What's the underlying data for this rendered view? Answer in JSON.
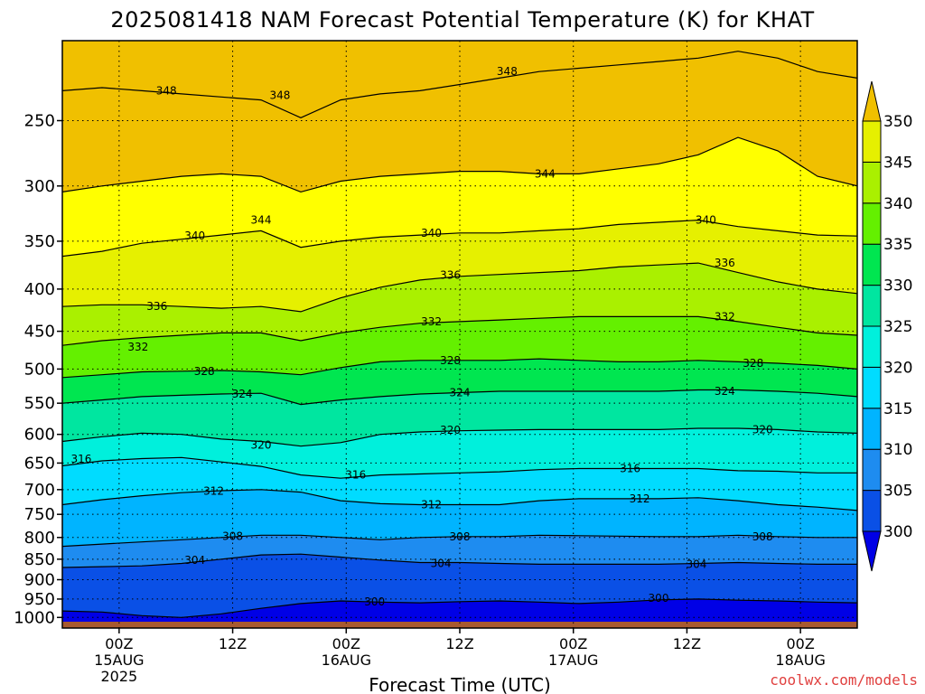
{
  "title": "2025081418 NAM Forecast Potential Temperature (K) for KHAT",
  "credit": "coolwx.com/models",
  "colors": {
    "bands": [
      "#0000e6",
      "#0a50e6",
      "#1e8cf0",
      "#00b4ff",
      "#00dcff",
      "#00f0dc",
      "#00e6a0",
      "#00e650",
      "#64f000",
      "#aaf000",
      "#e6f000",
      "#ffff00",
      "#f0c000"
    ],
    "ground": "#a85a30",
    "contour": "#000000",
    "grid": "#000000",
    "credit": "#e0403f"
  },
  "chart_data": {
    "type": "heatmap",
    "title": "2025081418 NAM Forecast Potential Temperature (K) for KHAT",
    "xlabel": "Forecast Time (UTC)",
    "ylabel": "",
    "y_scale": "log",
    "yrange": [
      1030,
      200
    ],
    "y_ticks": [
      250,
      300,
      350,
      400,
      450,
      500,
      550,
      600,
      650,
      700,
      750,
      800,
      850,
      900,
      950,
      1000
    ],
    "x_hours_range": [
      -6,
      78
    ],
    "x_ticks": [
      {
        "hour": 0,
        "label": "00Z",
        "date": "15AUG",
        "year": "2025"
      },
      {
        "hour": 12,
        "label": "12Z",
        "date": "",
        "year": ""
      },
      {
        "hour": 24,
        "label": "00Z",
        "date": "16AUG",
        "year": ""
      },
      {
        "hour": 36,
        "label": "12Z",
        "date": "",
        "year": ""
      },
      {
        "hour": 48,
        "label": "00Z",
        "date": "17AUG",
        "year": ""
      },
      {
        "hour": 60,
        "label": "12Z",
        "date": "",
        "year": ""
      },
      {
        "hour": 72,
        "label": "00Z",
        "date": "18AUG",
        "year": ""
      }
    ],
    "colorbar": {
      "levels": [
        300,
        305,
        310,
        315,
        320,
        325,
        330,
        335,
        340,
        345,
        350
      ],
      "labels": [
        "300",
        "305",
        "310",
        "315",
        "320",
        "325",
        "330",
        "335",
        "340",
        "345",
        "350"
      ],
      "extend": "both"
    },
    "contour_levels": [
      300,
      304,
      308,
      312,
      316,
      320,
      324,
      328,
      332,
      336,
      340,
      344,
      348
    ],
    "contour_labels": [
      {
        "text": "348",
        "hour": 5,
        "p": 230
      },
      {
        "text": "348",
        "hour": 17,
        "p": 233
      },
      {
        "text": "348",
        "hour": 41,
        "p": 218
      },
      {
        "text": "344",
        "hour": 15,
        "p": 330
      },
      {
        "text": "344",
        "hour": 45,
        "p": 290
      },
      {
        "text": "340",
        "hour": 8,
        "p": 345
      },
      {
        "text": "340",
        "hour": 33,
        "p": 342
      },
      {
        "text": "340",
        "hour": 62,
        "p": 330
      },
      {
        "text": "336",
        "hour": 4,
        "p": 420
      },
      {
        "text": "336",
        "hour": 35,
        "p": 385
      },
      {
        "text": "336",
        "hour": 64,
        "p": 372
      },
      {
        "text": "332",
        "hour": 2,
        "p": 470
      },
      {
        "text": "332",
        "hour": 33,
        "p": 438
      },
      {
        "text": "332",
        "hour": 64,
        "p": 432
      },
      {
        "text": "328",
        "hour": 9,
        "p": 503
      },
      {
        "text": "328",
        "hour": 35,
        "p": 488
      },
      {
        "text": "328",
        "hour": 67,
        "p": 492
      },
      {
        "text": "324",
        "hour": 13,
        "p": 536
      },
      {
        "text": "324",
        "hour": 36,
        "p": 534
      },
      {
        "text": "324",
        "hour": 64,
        "p": 532
      },
      {
        "text": "320",
        "hour": 15,
        "p": 618
      },
      {
        "text": "320",
        "hour": 35,
        "p": 593
      },
      {
        "text": "320",
        "hour": 68,
        "p": 592
      },
      {
        "text": "316",
        "hour": -4,
        "p": 643
      },
      {
        "text": "316",
        "hour": 25,
        "p": 672
      },
      {
        "text": "316",
        "hour": 54,
        "p": 660
      },
      {
        "text": "312",
        "hour": 10,
        "p": 703
      },
      {
        "text": "312",
        "hour": 33,
        "p": 730
      },
      {
        "text": "312",
        "hour": 55,
        "p": 718
      },
      {
        "text": "308",
        "hour": 12,
        "p": 797
      },
      {
        "text": "308",
        "hour": 36,
        "p": 798
      },
      {
        "text": "308",
        "hour": 68,
        "p": 798
      },
      {
        "text": "304",
        "hour": 8,
        "p": 853
      },
      {
        "text": "304",
        "hour": 34,
        "p": 860
      },
      {
        "text": "304",
        "hour": 61,
        "p": 862
      },
      {
        "text": "300",
        "hour": 27,
        "p": 957
      },
      {
        "text": "300",
        "hour": 57,
        "p": 948
      }
    ],
    "contour_pressures": {
      "300": [
        982,
        985,
        995,
        1000,
        990,
        975,
        962,
        955,
        958,
        960,
        957,
        955,
        958,
        962,
        958,
        952,
        950,
        953,
        955,
        958,
        960
      ],
      "304": [
        870,
        868,
        866,
        860,
        850,
        840,
        838,
        845,
        852,
        858,
        858,
        860,
        862,
        862,
        862,
        862,
        860,
        858,
        860,
        862,
        862
      ],
      "308": [
        820,
        815,
        810,
        805,
        800,
        795,
        795,
        800,
        805,
        800,
        798,
        798,
        795,
        796,
        797,
        798,
        798,
        795,
        798,
        800,
        800
      ],
      "312": [
        730,
        720,
        712,
        706,
        702,
        700,
        705,
        722,
        728,
        730,
        730,
        730,
        722,
        718,
        718,
        718,
        716,
        722,
        730,
        735,
        742
      ],
      "316": [
        655,
        646,
        642,
        640,
        648,
        656,
        672,
        678,
        672,
        670,
        668,
        666,
        662,
        660,
        660,
        660,
        660,
        664,
        665,
        668,
        668
      ],
      "320": [
        612,
        604,
        598,
        600,
        608,
        612,
        620,
        614,
        600,
        596,
        594,
        593,
        592,
        592,
        592,
        592,
        590,
        590,
        592,
        596,
        598
      ],
      "324": [
        550,
        545,
        540,
        538,
        536,
        535,
        552,
        545,
        540,
        536,
        534,
        532,
        532,
        532,
        532,
        532,
        530,
        530,
        532,
        535,
        540
      ],
      "328": [
        512,
        508,
        504,
        503,
        502,
        504,
        508,
        498,
        490,
        488,
        488,
        488,
        486,
        488,
        490,
        490,
        488,
        490,
        492,
        495,
        500
      ],
      "332": [
        468,
        462,
        458,
        455,
        452,
        452,
        462,
        452,
        445,
        440,
        438,
        436,
        434,
        432,
        432,
        432,
        432,
        438,
        445,
        452,
        455
      ],
      "336": [
        420,
        418,
        418,
        420,
        422,
        420,
        426,
        410,
        398,
        390,
        386,
        384,
        382,
        380,
        376,
        374,
        372,
        382,
        392,
        400,
        405
      ],
      "340": [
        365,
        360,
        352,
        348,
        344,
        340,
        356,
        350,
        346,
        344,
        342,
        342,
        340,
        338,
        334,
        332,
        330,
        336,
        340,
        344,
        345
      ],
      "344": [
        305,
        300,
        296,
        292,
        290,
        292,
        305,
        296,
        292,
        290,
        288,
        288,
        290,
        290,
        286,
        282,
        275,
        262,
        272,
        292,
        300
      ],
      "348": [
        230,
        228,
        230,
        232,
        234,
        236,
        248,
        236,
        232,
        230,
        226,
        222,
        218,
        216,
        214,
        212,
        210,
        206,
        210,
        218,
        222
      ]
    },
    "ground_pressure": 1012
  }
}
